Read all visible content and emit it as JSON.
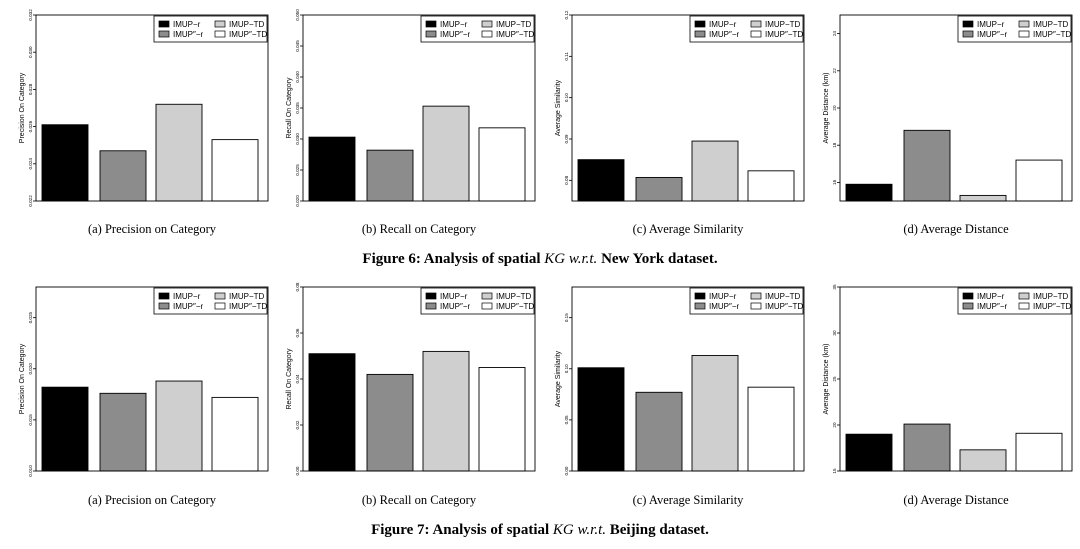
{
  "legend_labels": [
    "IMUP−r",
    "IMUP″−r",
    "IMUP−TD",
    "IMUP″−TD"
  ],
  "bar_colors": [
    "#000000",
    "#8c8c8c",
    "#cfcfcf",
    "#ffffff"
  ],
  "figures": [
    {
      "caption_prefix": "Figure 6: Analysis of spatial ",
      "caption_kg": "KG",
      "caption_wrt": "w.r.t.",
      "caption_dataset": "New York dataset."
    },
    {
      "caption_prefix": "Figure 7: Analysis of spatial ",
      "caption_kg": "KG",
      "caption_wrt": "w.r.t.",
      "caption_dataset": "Beijing dataset."
    }
  ],
  "chart_data": [
    {
      "type": "bar",
      "figure": 6,
      "panel": "a",
      "subcaption": "(a)  Precision on Category",
      "ylabel": "Precision On Category",
      "ylim": [
        0.022,
        0.032
      ],
      "yticks": [
        0.022,
        0.024,
        0.026,
        0.028,
        0.03,
        0.032
      ],
      "ytick_labels": [
        "0.022",
        "0.024",
        "0.026",
        "0.028",
        "0.030",
        "0.032"
      ],
      "values": [
        0.0261,
        0.0247,
        0.0272,
        0.0253
      ]
    },
    {
      "type": "bar",
      "figure": 6,
      "panel": "b",
      "subcaption": "(b)  Recall on Category",
      "ylabel": "Recall On Category",
      "ylim": [
        0.02,
        0.05
      ],
      "yticks": [
        0.02,
        0.025,
        0.03,
        0.035,
        0.04,
        0.045,
        0.05
      ],
      "ytick_labels": [
        "0.020",
        "0.025",
        "0.030",
        "0.035",
        "0.040",
        "0.045",
        "0.050"
      ],
      "values": [
        0.0303,
        0.0282,
        0.0353,
        0.0318
      ]
    },
    {
      "type": "bar",
      "figure": 6,
      "panel": "c",
      "subcaption": "(c)  Average Similarity",
      "ylabel": "Average Similarity",
      "ylim": [
        0.075,
        0.12
      ],
      "yticks": [
        0.08,
        0.09,
        0.1,
        0.11,
        0.12
      ],
      "ytick_labels": [
        "0.08",
        "0.09",
        "0.10",
        "0.11",
        "0.12"
      ],
      "values": [
        0.085,
        0.0807,
        0.0895,
        0.0823
      ]
    },
    {
      "type": "bar",
      "figure": 6,
      "panel": "d",
      "subcaption": "(d)  Average Distance",
      "ylabel": "Average Distance (km)",
      "ylim": [
        15,
        25
      ],
      "yticks": [
        16,
        18,
        20,
        22,
        24
      ],
      "ytick_labels": [
        "16",
        "18",
        "20",
        "22",
        "24"
      ],
      "values": [
        15.9,
        18.8,
        15.3,
        17.2
      ]
    },
    {
      "type": "bar",
      "figure": 7,
      "panel": "a",
      "subcaption": "(a)  Precision on Category",
      "ylabel": "Precision On Category",
      "ylim": [
        0.01,
        0.028
      ],
      "yticks": [
        0.01,
        0.015,
        0.02,
        0.025
      ],
      "ytick_labels": [
        "0.010",
        "0.015",
        "0.020",
        "0.025"
      ],
      "values": [
        0.0182,
        0.0176,
        0.0188,
        0.0172
      ]
    },
    {
      "type": "bar",
      "figure": 7,
      "panel": "b",
      "subcaption": "(b)  Recall on Category",
      "ylabel": "Recall On Category",
      "ylim": [
        0.0,
        0.08
      ],
      "yticks": [
        0.0,
        0.02,
        0.04,
        0.06,
        0.08
      ],
      "ytick_labels": [
        "0.00",
        "0.02",
        "0.04",
        "0.06",
        "0.08"
      ],
      "values": [
        0.051,
        0.042,
        0.052,
        0.045
      ]
    },
    {
      "type": "bar",
      "figure": 7,
      "panel": "c",
      "subcaption": "(c)  Average Similarity",
      "ylabel": "Average Similarity",
      "ylim": [
        0.0,
        0.18
      ],
      "yticks": [
        0.0,
        0.05,
        0.1,
        0.15
      ],
      "ytick_labels": [
        "0.00",
        "0.05",
        "0.10",
        "0.15"
      ],
      "values": [
        0.101,
        0.077,
        0.113,
        0.082
      ]
    },
    {
      "type": "bar",
      "figure": 7,
      "panel": "d",
      "subcaption": "(d)  Average Distance",
      "ylabel": "Average Distance (km)",
      "ylim": [
        15,
        35
      ],
      "yticks": [
        15,
        20,
        25,
        30,
        35
      ],
      "ytick_labels": [
        "15",
        "20",
        "25",
        "30",
        "35"
      ],
      "values": [
        19.0,
        20.1,
        17.3,
        19.1
      ]
    }
  ]
}
